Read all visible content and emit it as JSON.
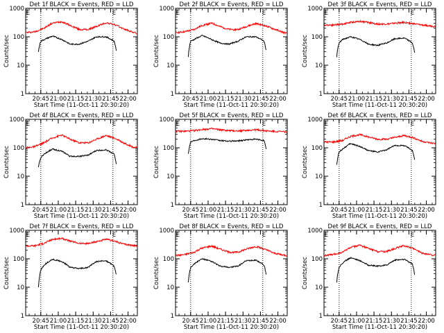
{
  "chart_data": [
    {
      "type": "line",
      "title": "Det 1f BLACK = Events, RED = LLD",
      "xlabel": "Start Time (11-Oct-11 20:30:20)",
      "ylabel": "Counts/sec",
      "x_unit": "UT time",
      "xlim": [
        "20:32",
        "22:08"
      ],
      "ylim": [
        1,
        1000
      ],
      "y_scale": "log",
      "yticks": [
        1,
        10,
        100,
        1000
      ],
      "yticklabels": [
        "1",
        "10",
        "100",
        "1000"
      ],
      "xticks": [
        "20:45",
        "21:00",
        "21:15",
        "21:30",
        "21:45",
        "22:00"
      ],
      "markers": {
        "start_label": "E",
        "start_time": "20:34",
        "end_label": "E",
        "end_time": "21:48"
      },
      "vlines": [
        "20:45",
        "21:47"
      ],
      "series": [
        {
          "color": "#ff0000",
          "x": [
            "20:32",
            "20:40",
            "20:48",
            "20:55",
            "21:03",
            "21:10",
            "21:18",
            "21:26",
            "21:33",
            "21:41",
            "21:48",
            "21:56",
            "22:03",
            "22:08"
          ],
          "values": [
            140,
            150,
            200,
            300,
            340,
            250,
            180,
            180,
            230,
            310,
            270,
            190,
            150,
            130
          ]
        },
        {
          "color": "#000000",
          "x": [
            "20:43",
            "20:45",
            "20:48",
            "20:55",
            "21:03",
            "21:10",
            "21:18",
            "21:26",
            "21:33",
            "21:41",
            "21:48",
            "21:50"
          ],
          "values": [
            30,
            70,
            80,
            105,
            80,
            55,
            55,
            70,
            100,
            100,
            70,
            30
          ]
        }
      ]
    },
    {
      "type": "line",
      "title": "Det 2f BLACK = Events, RED = LLD",
      "xlabel": "Start Time (11-Oct-11 20:30:20)",
      "ylabel": "Counts/sec",
      "x_unit": "UT time",
      "xlim": [
        "20:32",
        "22:08"
      ],
      "ylim": [
        1,
        1000
      ],
      "y_scale": "log",
      "yticks": [
        1,
        10,
        100,
        1000
      ],
      "yticklabels": [
        "1",
        "10",
        "100",
        "1000"
      ],
      "xticks": [
        "20:45",
        "21:00",
        "21:15",
        "21:30",
        "21:45",
        "22:00"
      ],
      "markers": {
        "start_label": "E",
        "start_time": "20:34",
        "end_label": "E",
        "end_time": "21:48"
      },
      "vlines": [
        "20:45",
        "21:47"
      ],
      "series": [
        {
          "color": "#ff0000",
          "x": [
            "20:32",
            "20:40",
            "20:48",
            "20:55",
            "21:03",
            "21:10",
            "21:18",
            "21:26",
            "21:33",
            "21:41",
            "21:48",
            "21:56",
            "22:03",
            "22:08"
          ],
          "values": [
            140,
            150,
            180,
            250,
            300,
            230,
            180,
            180,
            230,
            290,
            250,
            190,
            150,
            130
          ]
        },
        {
          "color": "#000000",
          "x": [
            "20:43",
            "20:45",
            "20:48",
            "20:55",
            "21:03",
            "21:10",
            "21:18",
            "21:26",
            "21:33",
            "21:41",
            "21:48",
            "21:50"
          ],
          "values": [
            20,
            70,
            80,
            110,
            80,
            60,
            55,
            70,
            100,
            100,
            70,
            30
          ]
        }
      ]
    },
    {
      "type": "line",
      "title": "Det 3f BLACK = Events, RED = LLD",
      "xlabel": "Start Time (11-Oct-11 20:30:20)",
      "ylabel": "Counts/sec",
      "x_unit": "UT time",
      "xlim": [
        "20:32",
        "22:08"
      ],
      "ylim": [
        1,
        1000
      ],
      "y_scale": "log",
      "yticks": [
        1,
        10,
        100,
        1000
      ],
      "yticklabels": [
        "1",
        "10",
        "100",
        "1000"
      ],
      "xticks": [
        "20:45",
        "21:00",
        "21:15",
        "21:30",
        "21:45",
        "22:00"
      ],
      "markers": {
        "start_label": "E",
        "start_time": "20:34",
        "end_label": "E",
        "end_time": "21:48"
      },
      "vlines": [
        "20:45",
        "21:47"
      ],
      "series": [
        {
          "color": "#ff0000",
          "x": [
            "20:32",
            "20:40",
            "20:48",
            "20:55",
            "21:03",
            "21:10",
            "21:18",
            "21:26",
            "21:33",
            "21:41",
            "21:48",
            "21:56",
            "22:03",
            "22:08"
          ],
          "values": [
            260,
            260,
            280,
            320,
            350,
            320,
            280,
            280,
            300,
            320,
            290,
            260,
            240,
            230
          ]
        },
        {
          "color": "#000000",
          "x": [
            "20:43",
            "20:45",
            "20:48",
            "20:55",
            "21:03",
            "21:10",
            "21:18",
            "21:26",
            "21:33",
            "21:41",
            "21:48",
            "21:50"
          ],
          "values": [
            20,
            60,
            80,
            100,
            80,
            55,
            50,
            60,
            85,
            90,
            60,
            25
          ]
        }
      ]
    },
    {
      "type": "line",
      "title": "Det 4f BLACK = Events, RED = LLD",
      "xlabel": "Start Time (11-Oct-11 20:30:20)",
      "ylabel": "Counts/sec",
      "x_unit": "UT time",
      "xlim": [
        "20:32",
        "22:08"
      ],
      "ylim": [
        1,
        1000
      ],
      "y_scale": "log",
      "yticks": [
        1,
        10,
        100,
        1000
      ],
      "yticklabels": [
        "1",
        "10",
        "100",
        "1000"
      ],
      "xticks": [
        "20:45",
        "21:00",
        "21:15",
        "21:30",
        "21:45",
        "22:00"
      ],
      "markers": {
        "start_label": "E",
        "start_time": "20:34",
        "end_label": "E",
        "end_time": "21:48"
      },
      "vlines": [
        "20:45",
        "21:47"
      ],
      "series": [
        {
          "color": "#ff0000",
          "x": [
            "20:32",
            "20:40",
            "20:48",
            "20:55",
            "21:03",
            "21:10",
            "21:18",
            "21:26",
            "21:33",
            "21:41",
            "21:48",
            "21:56",
            "22:03",
            "22:08"
          ],
          "values": [
            100,
            110,
            150,
            220,
            280,
            200,
            150,
            150,
            200,
            270,
            220,
            150,
            110,
            100
          ]
        },
        {
          "color": "#000000",
          "x": [
            "20:43",
            "20:45",
            "20:48",
            "20:55",
            "21:03",
            "21:10",
            "21:18",
            "21:26",
            "21:33",
            "21:41",
            "21:48",
            "21:50"
          ],
          "values": [
            20,
            45,
            60,
            90,
            75,
            50,
            50,
            55,
            80,
            85,
            60,
            25
          ]
        }
      ]
    },
    {
      "type": "line",
      "title": "Det 5f BLACK = Events, RED = LLD",
      "xlabel": "Start Time (11-Oct-11 20:30:20)",
      "ylabel": "Counts/sec",
      "x_unit": "UT time",
      "xlim": [
        "20:32",
        "22:08"
      ],
      "ylim": [
        1,
        1000
      ],
      "y_scale": "log",
      "yticks": [
        1,
        10,
        100,
        1000
      ],
      "yticklabels": [
        "1",
        "10",
        "100",
        "1000"
      ],
      "xticks": [
        "20:45",
        "21:00",
        "21:15",
        "21:30",
        "21:45",
        "22:00"
      ],
      "markers": {
        "start_label": "E",
        "start_time": "20:34",
        "end_label": "E",
        "end_time": "21:48"
      },
      "vlines": [
        "20:45",
        "21:47"
      ],
      "series": [
        {
          "color": "#ff0000",
          "x": [
            "20:32",
            "20:40",
            "20:48",
            "20:55",
            "21:03",
            "21:10",
            "21:18",
            "21:26",
            "21:33",
            "21:41",
            "21:48",
            "21:56",
            "22:03",
            "22:08"
          ],
          "values": [
            380,
            380,
            400,
            440,
            470,
            430,
            400,
            390,
            410,
            430,
            400,
            380,
            370,
            360
          ]
        },
        {
          "color": "#000000",
          "x": [
            "20:43",
            "20:45",
            "20:48",
            "20:55",
            "21:03",
            "21:10",
            "21:18",
            "21:26",
            "21:33",
            "21:41",
            "21:48",
            "21:50"
          ],
          "values": [
            60,
            160,
            180,
            210,
            200,
            180,
            170,
            175,
            190,
            200,
            180,
            80
          ]
        }
      ]
    },
    {
      "type": "line",
      "title": "Det 6f BLACK = Events, RED = LLD",
      "xlabel": "Start Time (11-Oct-11 20:30:20)",
      "ylabel": "Counts/sec",
      "x_unit": "UT time",
      "xlim": [
        "20:32",
        "22:08"
      ],
      "ylim": [
        1,
        1000
      ],
      "y_scale": "log",
      "yticks": [
        1,
        10,
        100,
        1000
      ],
      "yticklabels": [
        "1",
        "10",
        "100",
        "1000"
      ],
      "xticks": [
        "20:45",
        "21:00",
        "21:15",
        "21:30",
        "21:45",
        "22:00"
      ],
      "markers": {
        "start_label": "E",
        "start_time": "20:34",
        "end_label": "E",
        "end_time": "21:48"
      },
      "vlines": [
        "20:45",
        "21:47"
      ],
      "series": [
        {
          "color": "#ff0000",
          "x": [
            "20:32",
            "20:40",
            "20:48",
            "20:55",
            "21:03",
            "21:10",
            "21:18",
            "21:26",
            "21:33",
            "21:41",
            "21:48",
            "21:56",
            "22:03",
            "22:08"
          ],
          "values": [
            160,
            160,
            180,
            250,
            290,
            240,
            200,
            200,
            230,
            270,
            230,
            170,
            150,
            140
          ]
        },
        {
          "color": "#000000",
          "x": [
            "20:43",
            "20:45",
            "20:48",
            "20:55",
            "21:03",
            "21:10",
            "21:18",
            "21:26",
            "21:33",
            "21:41",
            "21:48",
            "21:50"
          ],
          "values": [
            25,
            70,
            90,
            140,
            110,
            80,
            70,
            85,
            120,
            120,
            80,
            35
          ]
        }
      ]
    },
    {
      "type": "line",
      "title": "Det 7f BLACK = Events, RED = LLD",
      "xlabel": "Start Time (11-Oct-11 20:30:20)",
      "ylabel": "Counts/sec",
      "x_unit": "UT time",
      "xlim": [
        "20:32",
        "22:08"
      ],
      "ylim": [
        1,
        1000
      ],
      "y_scale": "log",
      "yticks": [
        1,
        10,
        100,
        1000
      ],
      "yticklabels": [
        "1",
        "10",
        "100",
        "1000"
      ],
      "xticks": [
        "20:45",
        "21:00",
        "21:15",
        "21:30",
        "21:45",
        "22:00"
      ],
      "markers": {
        "start_label": "E",
        "start_time": "20:34",
        "end_label": "E",
        "end_time": "21:48"
      },
      "vlines": [
        "20:45",
        "21:47"
      ],
      "series": [
        {
          "color": "#ff0000",
          "x": [
            "20:32",
            "20:40",
            "20:48",
            "20:55",
            "21:03",
            "21:10",
            "21:18",
            "21:26",
            "21:33",
            "21:41",
            "21:48",
            "21:56",
            "22:03",
            "22:08"
          ],
          "values": [
            280,
            290,
            350,
            480,
            520,
            420,
            350,
            340,
            400,
            480,
            420,
            330,
            300,
            280
          ]
        },
        {
          "color": "#000000",
          "x": [
            "20:43",
            "20:45",
            "20:48",
            "20:55",
            "21:03",
            "21:10",
            "21:18",
            "21:26",
            "21:33",
            "21:41",
            "21:48",
            "21:50"
          ],
          "values": [
            10,
            40,
            60,
            95,
            80,
            50,
            45,
            50,
            80,
            85,
            55,
            25
          ]
        }
      ]
    },
    {
      "type": "line",
      "title": "Det 8f BLACK = Events, RED = LLD",
      "xlabel": "Start Time (11-Oct-11 20:30:20)",
      "ylabel": "Counts/sec",
      "x_unit": "UT time",
      "xlim": [
        "20:32",
        "22:08"
      ],
      "ylim": [
        1,
        1000
      ],
      "y_scale": "log",
      "yticks": [
        1,
        10,
        100,
        1000
      ],
      "yticklabels": [
        "1",
        "10",
        "100",
        "1000"
      ],
      "xticks": [
        "20:45",
        "21:00",
        "21:15",
        "21:30",
        "21:45",
        "22:00"
      ],
      "markers": {
        "start_label": "E",
        "start_time": "20:34",
        "end_label": "E",
        "end_time": "21:48"
      },
      "vlines": [
        "20:45",
        "21:47"
      ],
      "series": [
        {
          "color": "#ff0000",
          "x": [
            "20:32",
            "20:40",
            "20:48",
            "20:55",
            "21:03",
            "21:10",
            "21:18",
            "21:26",
            "21:33",
            "21:41",
            "21:48",
            "21:56",
            "22:03",
            "22:08"
          ],
          "values": [
            130,
            140,
            170,
            240,
            280,
            220,
            170,
            170,
            220,
            270,
            220,
            160,
            140,
            130
          ]
        },
        {
          "color": "#000000",
          "x": [
            "20:43",
            "20:45",
            "20:48",
            "20:55",
            "21:03",
            "21:10",
            "21:18",
            "21:26",
            "21:33",
            "21:41",
            "21:48",
            "21:50"
          ],
          "values": [
            15,
            50,
            65,
            100,
            80,
            55,
            50,
            55,
            85,
            90,
            60,
            25
          ]
        }
      ]
    },
    {
      "type": "line",
      "title": "Det 9f BLACK = Events, RED = LLD",
      "xlabel": "Start Time (11-Oct-11 20:30:20)",
      "ylabel": "Counts/sec",
      "x_unit": "UT time",
      "xlim": [
        "20:32",
        "22:08"
      ],
      "ylim": [
        1,
        1000
      ],
      "y_scale": "log",
      "yticks": [
        1,
        10,
        100,
        1000
      ],
      "yticklabels": [
        "1",
        "10",
        "100",
        "1000"
      ],
      "xticks": [
        "20:45",
        "21:00",
        "21:15",
        "21:30",
        "21:45",
        "22:00"
      ],
      "markers": {
        "start_label": "E",
        "start_time": "20:34",
        "end_label": "E",
        "end_time": "21:48"
      },
      "vlines": [
        "20:45",
        "21:47"
      ],
      "series": [
        {
          "color": "#ff0000",
          "x": [
            "20:32",
            "20:40",
            "20:48",
            "20:55",
            "21:03",
            "21:10",
            "21:18",
            "21:26",
            "21:33",
            "21:41",
            "21:48",
            "21:56",
            "22:03",
            "22:08"
          ],
          "values": [
            130,
            140,
            170,
            250,
            300,
            230,
            180,
            180,
            230,
            290,
            230,
            160,
            140,
            130
          ]
        },
        {
          "color": "#000000",
          "x": [
            "20:43",
            "20:45",
            "20:48",
            "20:55",
            "21:03",
            "21:10",
            "21:18",
            "21:26",
            "21:33",
            "21:41",
            "21:48",
            "21:50"
          ],
          "values": [
            15,
            50,
            70,
            110,
            85,
            60,
            55,
            60,
            90,
            95,
            65,
            25
          ]
        }
      ]
    }
  ]
}
